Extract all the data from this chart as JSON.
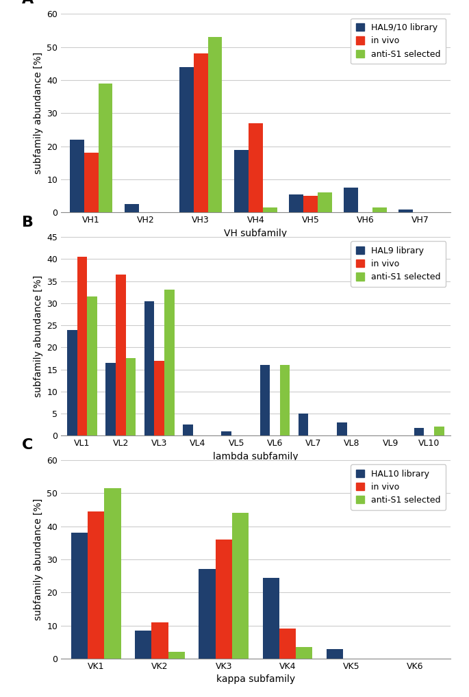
{
  "panel_A": {
    "title": "A",
    "categories": [
      "VH1",
      "VH2",
      "VH3",
      "VH4",
      "VH5",
      "VH6",
      "VH7"
    ],
    "series": {
      "HAL9/10 library": [
        22,
        2.5,
        44,
        19,
        5.5,
        7.5,
        1
      ],
      "in vivo": [
        18,
        0,
        48,
        27,
        5,
        0,
        0
      ],
      "anti-S1 selected": [
        39,
        0,
        53,
        1.5,
        6,
        1.5,
        0
      ]
    },
    "legend_labels": [
      "HAL9/10 library",
      "in vivo",
      "anti-S1 selected"
    ],
    "xlabel": "VH subfamily",
    "ylabel": "subfamily abundance [%]",
    "ylim": [
      0,
      60
    ],
    "yticks": [
      0,
      10,
      20,
      30,
      40,
      50,
      60
    ]
  },
  "panel_B": {
    "title": "B",
    "categories": [
      "VL1",
      "VL2",
      "VL3",
      "VL4",
      "VL5",
      "VL6",
      "VL7",
      "VL8",
      "VL9",
      "VL10"
    ],
    "series": {
      "HAL9 library": [
        24,
        16.5,
        30.5,
        2.5,
        1,
        16,
        5,
        3,
        0,
        1.7
      ],
      "in vivo": [
        40.5,
        36.5,
        17,
        0,
        0,
        0,
        0,
        0,
        0,
        0
      ],
      "anti-S1 selected": [
        31.5,
        17.5,
        33,
        0,
        0,
        16,
        0,
        0,
        0,
        2
      ]
    },
    "legend_labels": [
      "HAL9 library",
      "in vivo",
      "anti-S1 selected"
    ],
    "xlabel": "lambda subfamily",
    "ylabel": "subfamily abundance [%]",
    "ylim": [
      0,
      45
    ],
    "yticks": [
      0,
      5,
      10,
      15,
      20,
      25,
      30,
      35,
      40,
      45
    ]
  },
  "panel_C": {
    "title": "C",
    "categories": [
      "VK1",
      "VK2",
      "VK3",
      "VK4",
      "VK5",
      "VK6"
    ],
    "series": {
      "HAL10 library": [
        38,
        8.5,
        27,
        24.5,
        3,
        0
      ],
      "in vivo": [
        44.5,
        11,
        36,
        9,
        0,
        0
      ],
      "anti-S1 selected": [
        51.5,
        2,
        44,
        3.5,
        0,
        0
      ]
    },
    "legend_labels": [
      "HAL10 library",
      "in vivo",
      "anti-S1 selected"
    ],
    "xlabel": "kappa subfamily",
    "ylabel": "subfamily abundance [%]",
    "ylim": [
      0,
      60
    ],
    "yticks": [
      0,
      10,
      20,
      30,
      40,
      50,
      60
    ]
  },
  "colors": [
    "#1f3f6e",
    "#e8321a",
    "#84c441"
  ],
  "bar_width": 0.26,
  "background_color": "#ffffff",
  "grid_color": "#cccccc",
  "label_fontsize": 10,
  "tick_fontsize": 9,
  "legend_fontsize": 9,
  "panel_label_fontsize": 16
}
